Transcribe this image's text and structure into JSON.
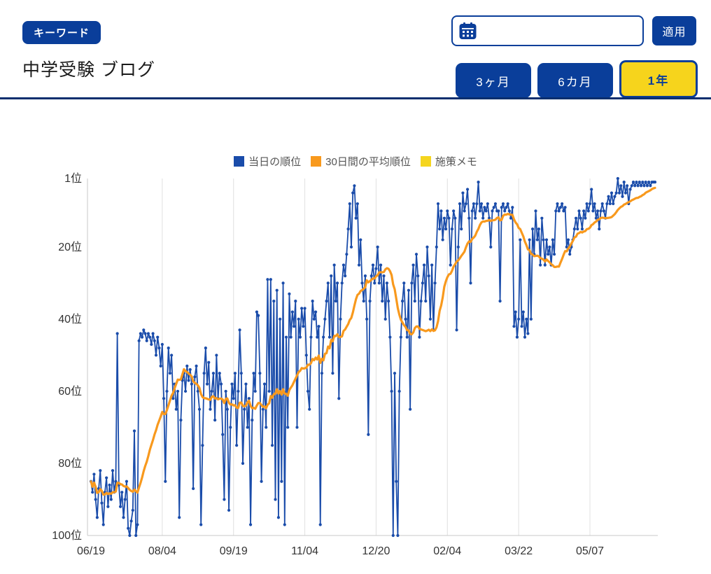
{
  "header": {
    "keyword_badge": "キーワード",
    "keyword_title": "中学受験 ブログ",
    "date_input": {
      "value": ""
    },
    "apply_button": "適用",
    "period_buttons": [
      {
        "label": "3ヶ月",
        "active": false
      },
      {
        "label": "6カ月",
        "active": false
      },
      {
        "label": "1年",
        "active": true
      }
    ]
  },
  "colors": {
    "primary_blue": "#0a3e9a",
    "divider_navy": "#0a2e6e",
    "active_yellow": "#f6d41c",
    "series_daily_blue": "#1a4caa",
    "series_average_orange": "#f8991d",
    "series_memo_yellow": "#f5d51f",
    "gridline_gray": "#e0e0e0",
    "axis_gray": "#c9c9c9"
  },
  "chart_data": {
    "type": "line",
    "title": "",
    "legend": [
      "当日の順位",
      "30日間の平均順位",
      "施策メモ"
    ],
    "x_tick_labels": [
      "06/19",
      "08/04",
      "09/19",
      "11/04",
      "12/20",
      "02/04",
      "03/22",
      "05/07"
    ],
    "x_tick_days": [
      0,
      46,
      92,
      138,
      184,
      230,
      276,
      322
    ],
    "x_range_days": [
      0,
      364
    ],
    "y_tick_labels": [
      "1位",
      "20位",
      "40位",
      "60位",
      "80位",
      "100位"
    ],
    "y_ticks": [
      1,
      20,
      40,
      60,
      80,
      100
    ],
    "y_axis_inverted": true,
    "y_range": [
      1,
      100
    ],
    "grid": "vertical",
    "legend_position": "top-center",
    "series": [
      {
        "name": "当日の順位",
        "color": "#1a4caa",
        "x_unit": "day_index_from_06-19",
        "values": [
          85,
          88,
          83,
          90,
          95,
          87,
          82,
          91,
          97,
          88,
          84,
          92,
          86,
          90,
          82,
          88,
          85,
          44,
          86,
          92,
          88,
          95,
          90,
          85,
          98,
          100,
          96,
          93,
          71,
          100,
          97,
          46,
          44,
          45,
          43,
          44,
          46,
          44,
          45,
          47,
          44,
          46,
          50,
          45,
          48,
          53,
          47,
          62,
          85,
          60,
          48,
          55,
          50,
          62,
          58,
          65,
          60,
          95,
          68,
          57,
          55,
          60,
          53,
          57,
          54,
          58,
          87,
          56,
          53,
          60,
          65,
          97,
          75,
          55,
          48,
          58,
          52,
          65,
          60,
          55,
          68,
          50,
          62,
          55,
          58,
          72,
          90,
          60,
          65,
          93,
          70,
          58,
          62,
          55,
          75,
          60,
          43,
          55,
          80,
          65,
          58,
          70,
          62,
          97,
          68,
          55,
          60,
          38,
          39,
          55,
          85,
          65,
          58,
          70,
          29,
          60,
          29,
          75,
          35,
          90,
          32,
          95,
          40,
          85,
          30,
          97,
          45,
          70,
          33,
          45,
          38,
          42,
          35,
          70,
          40,
          45,
          37,
          42,
          37,
          50,
          60,
          65,
          45,
          35,
          40,
          38,
          45,
          42,
          97,
          55,
          45,
          40,
          35,
          30,
          45,
          28,
          55,
          25,
          35,
          30,
          62,
          40,
          30,
          25,
          28,
          22,
          15,
          8,
          20,
          5,
          3,
          12,
          8,
          25,
          18,
          30,
          35,
          28,
          40,
          72,
          35,
          28,
          25,
          30,
          26,
          20,
          30,
          25,
          35,
          28,
          40,
          30,
          35,
          45,
          60,
          100,
          55,
          85,
          100,
          60,
          45,
          35,
          30,
          40,
          45,
          32,
          65,
          30,
          25,
          35,
          22,
          28,
          45,
          35,
          30,
          25,
          35,
          20,
          28,
          40,
          25,
          43,
          30,
          20,
          8,
          15,
          10,
          18,
          12,
          15,
          10,
          12,
          25,
          15,
          10,
          12,
          43,
          20,
          8,
          15,
          5,
          10,
          8,
          4,
          12,
          30,
          10,
          8,
          12,
          8,
          2,
          10,
          8,
          12,
          9,
          10,
          8,
          12,
          20,
          10,
          9,
          8,
          10,
          10,
          35,
          9,
          8,
          10,
          9,
          8,
          10,
          12,
          9,
          42,
          38,
          45,
          40,
          18,
          42,
          38,
          45,
          40,
          44,
          18,
          40,
          15,
          22,
          10,
          18,
          15,
          25,
          12,
          18,
          25,
          18,
          22,
          20,
          25,
          18,
          22,
          10,
          8,
          10,
          9,
          8,
          10,
          9,
          20,
          18,
          22,
          20,
          18,
          15,
          12,
          15,
          10,
          12,
          15,
          10,
          12,
          8,
          10,
          8,
          4,
          10,
          8,
          12,
          10,
          15,
          10,
          8,
          10,
          12,
          8,
          6,
          8,
          5,
          8,
          6,
          5,
          1,
          5,
          3,
          6,
          2,
          5,
          3,
          8,
          4,
          3,
          2,
          3,
          2,
          3,
          2,
          3,
          2,
          3,
          2,
          3,
          2,
          3,
          2,
          2,
          2
        ]
      },
      {
        "name": "30日間の平均順位",
        "color": "#f8991d",
        "derived": "trailing_mean_of_series_0",
        "window": 30
      },
      {
        "name": "施策メモ",
        "color": "#f5d51f",
        "values": []
      }
    ]
  }
}
